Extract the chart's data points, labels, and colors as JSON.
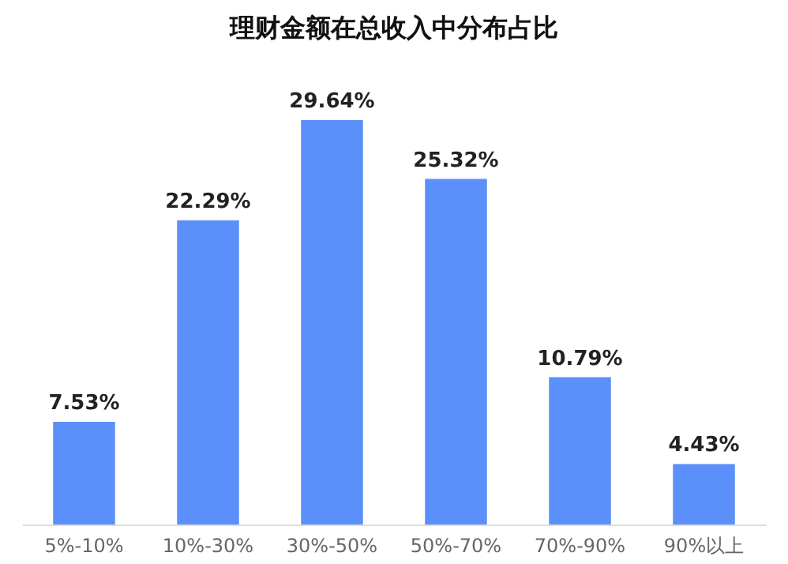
{
  "chart_data": {
    "type": "bar",
    "title": "理财金额在总收入中分布占比",
    "categories": [
      "5%-10%",
      "10%-30%",
      "30%-50%",
      "50%-70%",
      "70%-90%",
      "90%以上"
    ],
    "values": [
      7.53,
      22.29,
      29.64,
      25.32,
      10.79,
      4.43
    ],
    "value_labels": [
      "7.53%",
      "22.29%",
      "29.64%",
      "25.32%",
      "10.79%",
      "4.43%"
    ],
    "color": "#5b8ff9",
    "grid": false
  }
}
